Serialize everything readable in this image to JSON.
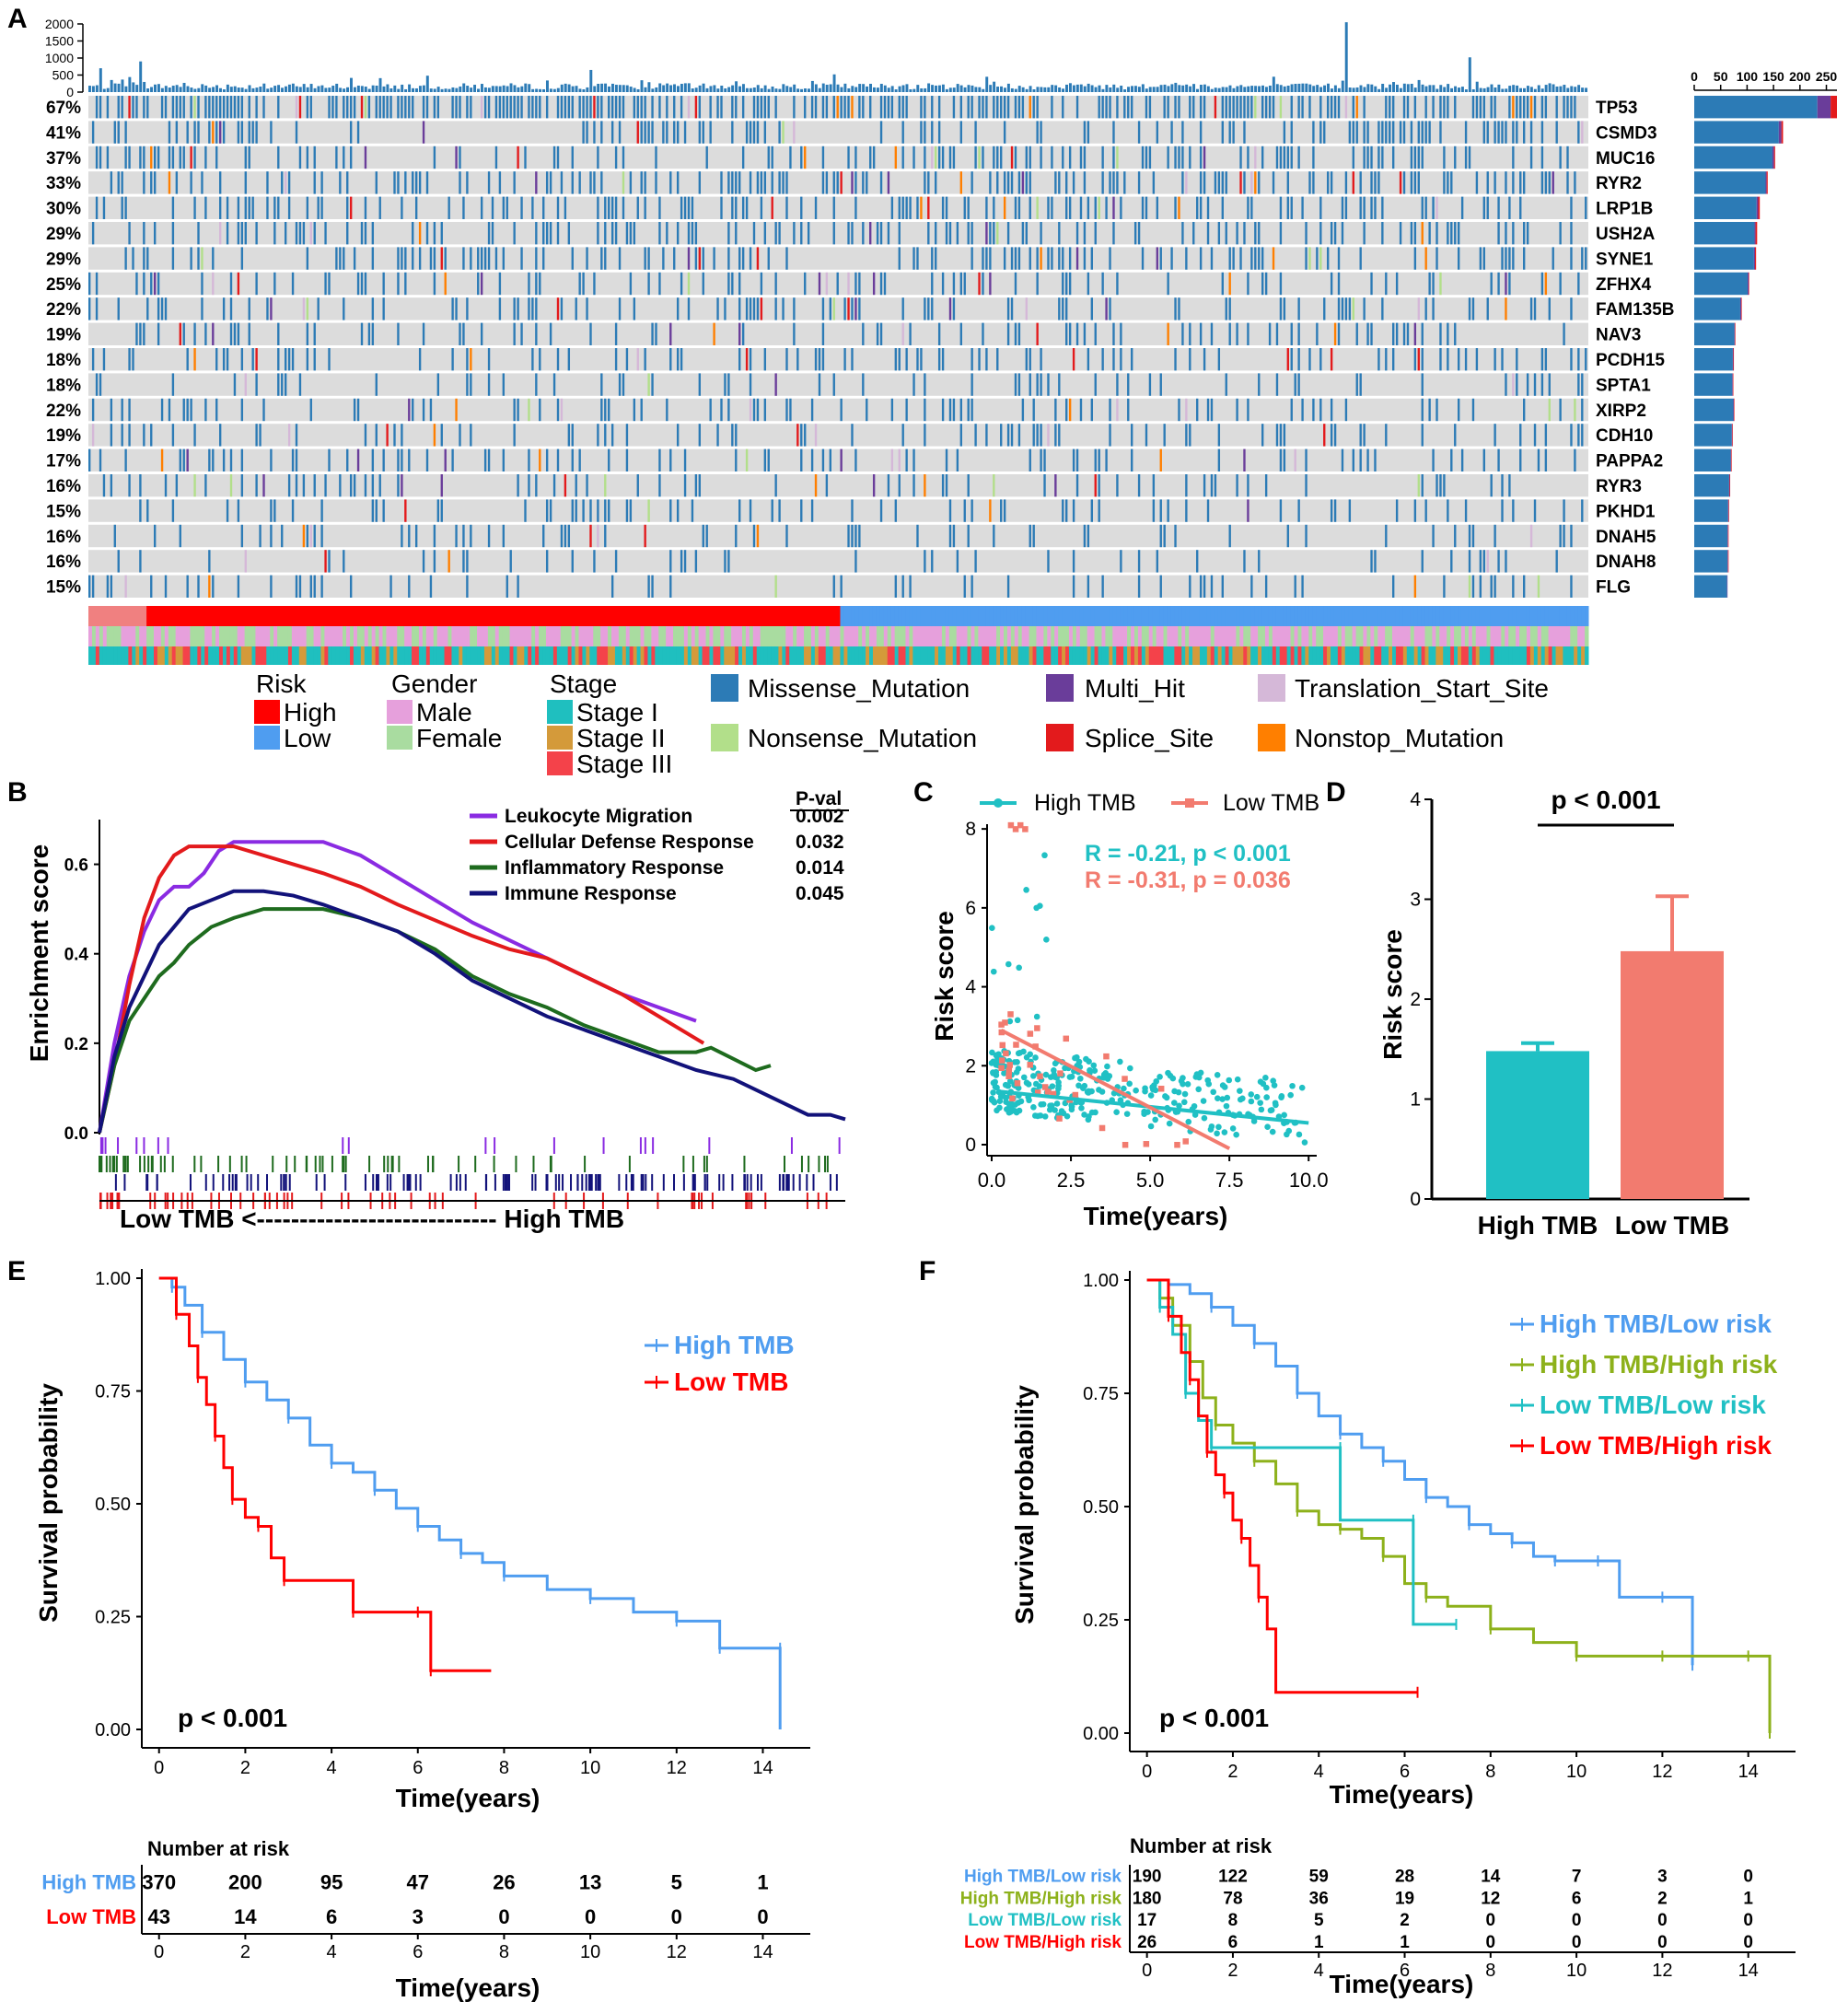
{
  "colors": {
    "missense": "#2c7bb6",
    "multi": "#6a3d9a",
    "tss": "#d5b8d8",
    "nonsense": "#b2df8a",
    "splice": "#e31a1c",
    "nonstop": "#ff7f00",
    "high": "#ff0000",
    "low": "#4f9df0",
    "male": "#e6a0dc",
    "female": "#a9dca0",
    "stage1": "#1fbfbf",
    "stage2": "#d49a3a",
    "stage3": "#f4424a",
    "teal": "#20c0c4",
    "salmon": "#f27b6f",
    "green": "#8db11b",
    "purple": "#8a2be2",
    "darkgreen": "#1e6b1e",
    "navy": "#12127a"
  },
  "panels": {
    "A": "A",
    "B": "B",
    "C": "C",
    "D": "D",
    "E": "E",
    "F": "F"
  },
  "chart_data": [
    {
      "id": "A",
      "type": "heatmap",
      "title": "Oncoplot",
      "tmb_ticks": [
        "2000",
        "1500",
        "1000",
        "500",
        "0"
      ],
      "bar_ticks": [
        "0",
        "50",
        "100",
        "150",
        "200",
        "250"
      ],
      "genes": [
        {
          "name": "TP53",
          "pct": "67%",
          "total": 270,
          "parts": [
            233,
            25,
            12
          ],
          "density": 0.64
        },
        {
          "name": "CSMD3",
          "pct": "41%",
          "total": 168,
          "parts": [
            160,
            5,
            3
          ],
          "density": 0.42
        },
        {
          "name": "MUC16",
          "pct": "37%",
          "total": 153,
          "parts": [
            148,
            3,
            2
          ],
          "density": 0.38
        },
        {
          "name": "RYR2",
          "pct": "33%",
          "total": 139,
          "parts": [
            135,
            2,
            2
          ],
          "density": 0.34
        },
        {
          "name": "LRP1B",
          "pct": "30%",
          "total": 124,
          "parts": [
            118,
            3,
            3
          ],
          "density": 0.3
        },
        {
          "name": "USH2A",
          "pct": "29%",
          "total": 119,
          "parts": [
            114,
            2,
            3
          ],
          "density": 0.29
        },
        {
          "name": "SYNE1",
          "pct": "29%",
          "total": 117,
          "parts": [
            113,
            2,
            2
          ],
          "density": 0.29
        },
        {
          "name": "ZFHX4",
          "pct": "25%",
          "total": 104,
          "parts": [
            101,
            2,
            1
          ],
          "density": 0.25
        },
        {
          "name": "FAM135B",
          "pct": "22%",
          "total": 90,
          "parts": [
            87,
            2,
            1
          ],
          "density": 0.22
        },
        {
          "name": "NAV3",
          "pct": "19%",
          "total": 78,
          "parts": [
            76,
            1,
            1
          ],
          "density": 0.19
        },
        {
          "name": "PCDH15",
          "pct": "18%",
          "total": 75,
          "parts": [
            73,
            1,
            1
          ],
          "density": 0.18
        },
        {
          "name": "SPTA1",
          "pct": "18%",
          "total": 74,
          "parts": [
            72,
            1,
            1
          ],
          "density": 0.18
        },
        {
          "name": "XIRP2",
          "pct": "22%",
          "total": 76,
          "parts": [
            74,
            1,
            1
          ],
          "density": 0.22
        },
        {
          "name": "CDH10",
          "pct": "19%",
          "total": 73,
          "parts": [
            71,
            1,
            1
          ],
          "density": 0.19
        },
        {
          "name": "PAPPA2",
          "pct": "17%",
          "total": 71,
          "parts": [
            69,
            1,
            1
          ],
          "density": 0.17
        },
        {
          "name": "RYR3",
          "pct": "16%",
          "total": 68,
          "parts": [
            66,
            1,
            1
          ],
          "density": 0.16
        },
        {
          "name": "PKHD1",
          "pct": "15%",
          "total": 66,
          "parts": [
            64,
            1,
            1
          ],
          "density": 0.15
        },
        {
          "name": "DNAH5",
          "pct": "16%",
          "total": 65,
          "parts": [
            63,
            1,
            1
          ],
          "density": 0.16
        },
        {
          "name": "DNAH8",
          "pct": "16%",
          "total": 65,
          "parts": [
            63,
            1,
            1
          ],
          "density": 0.16
        },
        {
          "name": "FLG",
          "pct": "15%",
          "total": 63,
          "parts": [
            62,
            1,
            0
          ],
          "density": 0.15
        }
      ],
      "legend": {
        "risk_title": "Risk",
        "risk_high": "High",
        "risk_low": "Low",
        "gender_title": "Gender",
        "gender_male": "Male",
        "gender_female": "Female",
        "stage_title": "Stage",
        "stage_1": "Stage I",
        "stage_2": "Stage II",
        "stage_3": "Stage III",
        "mut_missense": "Missense_Mutation",
        "mut_multi": "Multi_Hit",
        "mut_tss": "Translation_Start_Site",
        "mut_nonsense": "Nonsense_Mutation",
        "mut_splice": "Splice_Site",
        "mut_nonstop": "Nonstop_Mutation"
      }
    },
    {
      "id": "B",
      "type": "line",
      "title": "GSEA",
      "ylabel": "Enrichment score",
      "yticks": [
        "0.6",
        "0.4",
        "0.2",
        "0.0"
      ],
      "ylim": [
        0,
        0.7
      ],
      "xlim": [
        0,
        1
      ],
      "pval_header": "P-val",
      "series": [
        {
          "name": "Leukocyte Migration",
          "pval": "0.002",
          "color": "#8a2be2",
          "x": [
            0,
            0.02,
            0.04,
            0.06,
            0.08,
            0.1,
            0.12,
            0.14,
            0.16,
            0.18,
            0.22,
            0.26,
            0.3,
            0.35,
            0.4,
            0.5,
            0.6,
            0.7,
            0.8
          ],
          "y": [
            0,
            0.2,
            0.35,
            0.45,
            0.52,
            0.55,
            0.55,
            0.58,
            0.63,
            0.65,
            0.65,
            0.65,
            0.65,
            0.62,
            0.57,
            0.47,
            0.39,
            0.31,
            0.25
          ]
        },
        {
          "name": "Cellular Defense Response",
          "pval": "0.032",
          "color": "#e31a1c",
          "x": [
            0,
            0.02,
            0.04,
            0.06,
            0.08,
            0.1,
            0.12,
            0.15,
            0.18,
            0.22,
            0.26,
            0.3,
            0.35,
            0.4,
            0.5,
            0.55,
            0.6,
            0.7,
            0.81
          ],
          "y": [
            0,
            0.15,
            0.33,
            0.48,
            0.57,
            0.62,
            0.64,
            0.64,
            0.64,
            0.62,
            0.6,
            0.58,
            0.55,
            0.51,
            0.44,
            0.41,
            0.39,
            0.31,
            0.2
          ]
        },
        {
          "name": "Inflammatory Response",
          "pval": "0.014",
          "color": "#1e6b1e",
          "x": [
            0,
            0.02,
            0.04,
            0.06,
            0.08,
            0.1,
            0.12,
            0.15,
            0.18,
            0.22,
            0.26,
            0.3,
            0.35,
            0.4,
            0.45,
            0.5,
            0.55,
            0.6,
            0.65,
            0.7,
            0.75,
            0.8,
            0.82,
            0.88,
            0.9
          ],
          "y": [
            0,
            0.15,
            0.25,
            0.3,
            0.35,
            0.38,
            0.42,
            0.46,
            0.48,
            0.5,
            0.5,
            0.5,
            0.48,
            0.45,
            0.41,
            0.35,
            0.31,
            0.28,
            0.24,
            0.21,
            0.18,
            0.18,
            0.19,
            0.14,
            0.15
          ]
        },
        {
          "name": "Immune Response",
          "pval": "0.045",
          "color": "#12127a",
          "x": [
            0,
            0.02,
            0.04,
            0.06,
            0.08,
            0.1,
            0.12,
            0.15,
            0.18,
            0.22,
            0.26,
            0.3,
            0.35,
            0.4,
            0.45,
            0.5,
            0.55,
            0.6,
            0.65,
            0.7,
            0.75,
            0.8,
            0.85,
            0.9,
            0.95,
            0.98,
            1.0
          ],
          "y": [
            0,
            0.17,
            0.28,
            0.35,
            0.42,
            0.46,
            0.5,
            0.52,
            0.54,
            0.54,
            0.53,
            0.51,
            0.48,
            0.45,
            0.4,
            0.34,
            0.3,
            0.26,
            0.23,
            0.2,
            0.17,
            0.14,
            0.12,
            0.08,
            0.04,
            0.04,
            0.03
          ]
        }
      ],
      "xaxis_label": "Low TMB <---------------------------- High TMB"
    },
    {
      "id": "C",
      "type": "scatter",
      "ylabel": "Risk score",
      "xlabel": "Time(years)",
      "xticks": [
        "0.0",
        "2.5",
        "5.0",
        "7.5",
        "10.0"
      ],
      "yticks": [
        "0",
        "2",
        "4",
        "6",
        "8"
      ],
      "xlim": [
        0,
        10
      ],
      "ylim": [
        0,
        8.4
      ],
      "legend_high": "High TMB",
      "legend_low": "Low TMB",
      "stat_high": "R = -0.21, p < 0.001",
      "stat_low": "R = -0.31, p = 0.036",
      "fit_high": [
        [
          0.2,
          1.35
        ],
        [
          10,
          0.55
        ]
      ],
      "fit_low": [
        [
          0.3,
          2.9
        ],
        [
          7.5,
          -0.1
        ]
      ],
      "points_high_n": 320,
      "points_low_n": 40
    },
    {
      "id": "D",
      "type": "bar",
      "ylabel": "Risk score",
      "ylim": [
        0,
        4
      ],
      "yticks": [
        "0",
        "1",
        "2",
        "3",
        "4"
      ],
      "categories": [
        "High TMB",
        "Low TMB"
      ],
      "values": [
        1.48,
        2.48
      ],
      "errors": [
        0.08,
        0.55
      ],
      "annotation": "p < 0.001"
    },
    {
      "id": "E",
      "type": "line",
      "ylabel": "Survival probability",
      "xlabel": "Time(years)",
      "xticks": [
        "0",
        "2",
        "4",
        "6",
        "8",
        "10",
        "12",
        "14"
      ],
      "yticks": [
        "1.00",
        "0.75",
        "0.50",
        "0.25",
        "0.00"
      ],
      "xlim": [
        0,
        15.5
      ],
      "ylim": [
        0,
        1
      ],
      "pvalue": "p < 0.001",
      "series": [
        {
          "name": "High TMB",
          "color": "#4f9df0",
          "x": [
            0,
            0.3,
            0.6,
            1,
            1.5,
            2,
            2.5,
            3,
            3.5,
            4,
            4.5,
            5,
            5.5,
            6,
            6.5,
            7,
            7.5,
            8,
            9,
            10,
            11,
            12,
            12.5,
            13,
            14,
            14.4,
            14.4
          ],
          "y": [
            1,
            0.98,
            0.94,
            0.88,
            0.82,
            0.77,
            0.73,
            0.69,
            0.63,
            0.59,
            0.57,
            0.53,
            0.49,
            0.45,
            0.42,
            0.39,
            0.37,
            0.34,
            0.31,
            0.29,
            0.26,
            0.24,
            0.24,
            0.18,
            0.18,
            0.18,
            0.0
          ]
        },
        {
          "name": "Low TMB",
          "color": "#ff0000",
          "x": [
            0,
            0.4,
            0.7,
            0.9,
            1.1,
            1.3,
            1.5,
            1.7,
            2,
            2.3,
            2.6,
            2.9,
            3.5,
            4.5,
            5,
            6,
            6.3,
            6.3,
            7.7
          ],
          "y": [
            1,
            0.92,
            0.85,
            0.78,
            0.72,
            0.65,
            0.58,
            0.51,
            0.47,
            0.45,
            0.38,
            0.33,
            0.33,
            0.26,
            0.26,
            0.26,
            0.26,
            0.13,
            0.13
          ]
        }
      ],
      "risk_title": "Number at risk",
      "risk_rows": [
        {
          "label": "High TMB",
          "values": [
            "370",
            "200",
            "95",
            "47",
            "26",
            "13",
            "5",
            "1"
          ]
        },
        {
          "label": "Low TMB",
          "values": [
            "43",
            "14",
            "6",
            "3",
            "0",
            "0",
            "0",
            "0"
          ]
        }
      ]
    },
    {
      "id": "F",
      "type": "line",
      "ylabel": "Survival probability",
      "xlabel": "Time(years)",
      "xticks": [
        "0",
        "2",
        "4",
        "6",
        "8",
        "10",
        "12",
        "14"
      ],
      "yticks": [
        "1.00",
        "0.75",
        "0.50",
        "0.25",
        "0.00"
      ],
      "xlim": [
        0,
        15.5
      ],
      "ylim": [
        0,
        1
      ],
      "pvalue": "p < 0.001",
      "series": [
        {
          "name": "High TMB/Low risk",
          "color": "#4f9df0",
          "x": [
            0,
            0.5,
            1,
            1.5,
            2,
            2.5,
            3,
            3.5,
            4,
            4.5,
            5,
            5.5,
            6,
            6.5,
            7,
            7.5,
            8,
            8.5,
            9,
            9.5,
            10,
            10.5,
            11,
            12,
            12.5,
            12.7,
            12.7
          ],
          "y": [
            1,
            0.99,
            0.97,
            0.94,
            0.9,
            0.86,
            0.81,
            0.75,
            0.7,
            0.66,
            0.63,
            0.6,
            0.56,
            0.52,
            0.5,
            0.46,
            0.44,
            0.42,
            0.39,
            0.38,
            0.38,
            0.38,
            0.3,
            0.3,
            0.3,
            0.15,
            0.15
          ]
        },
        {
          "name": "High TMB/High risk",
          "color": "#8db11b",
          "x": [
            0,
            0.3,
            0.6,
            1,
            1.3,
            1.6,
            2,
            2.5,
            3,
            3.5,
            4,
            4.5,
            5,
            5.5,
            6,
            6.5,
            7,
            8,
            9,
            10,
            11,
            12,
            13,
            14,
            14.5,
            14.5
          ],
          "y": [
            1,
            0.96,
            0.9,
            0.82,
            0.74,
            0.68,
            0.64,
            0.6,
            0.55,
            0.49,
            0.46,
            0.45,
            0.43,
            0.39,
            0.33,
            0.3,
            0.28,
            0.23,
            0.2,
            0.17,
            0.17,
            0.17,
            0.17,
            0.17,
            0.17,
            0.0
          ]
        },
        {
          "name": "Low TMB/Low risk",
          "color": "#20c0c4",
          "x": [
            0,
            0.3,
            0.6,
            0.9,
            1.2,
            1.5,
            2,
            4.5,
            4.5,
            6.2,
            6.2,
            7.2
          ],
          "y": [
            1,
            0.94,
            0.88,
            0.75,
            0.69,
            0.63,
            0.63,
            0.63,
            0.47,
            0.47,
            0.24,
            0.24
          ]
        },
        {
          "name": "Low TMB/High risk",
          "color": "#ff0000",
          "x": [
            0,
            0.5,
            0.8,
            1,
            1.2,
            1.4,
            1.6,
            1.8,
            2,
            2.2,
            2.4,
            2.6,
            2.8,
            3,
            3,
            6.3
          ],
          "y": [
            1,
            0.92,
            0.84,
            0.78,
            0.7,
            0.62,
            0.57,
            0.53,
            0.47,
            0.43,
            0.37,
            0.3,
            0.23,
            0.18,
            0.09,
            0.09
          ]
        }
      ],
      "risk_title": "Number at risk",
      "risk_rows": [
        {
          "label": "High TMB/Low risk",
          "values": [
            "190",
            "122",
            "59",
            "28",
            "14",
            "7",
            "3",
            "0"
          ]
        },
        {
          "label": "High TMB/High risk",
          "values": [
            "180",
            "78",
            "36",
            "19",
            "12",
            "6",
            "2",
            "1"
          ]
        },
        {
          "label": "Low TMB/Low risk",
          "values": [
            "17",
            "8",
            "5",
            "2",
            "0",
            "0",
            "0",
            "0"
          ]
        },
        {
          "label": "Low TMB/High risk",
          "values": [
            "26",
            "6",
            "1",
            "1",
            "0",
            "0",
            "0",
            "0"
          ]
        }
      ]
    }
  ]
}
